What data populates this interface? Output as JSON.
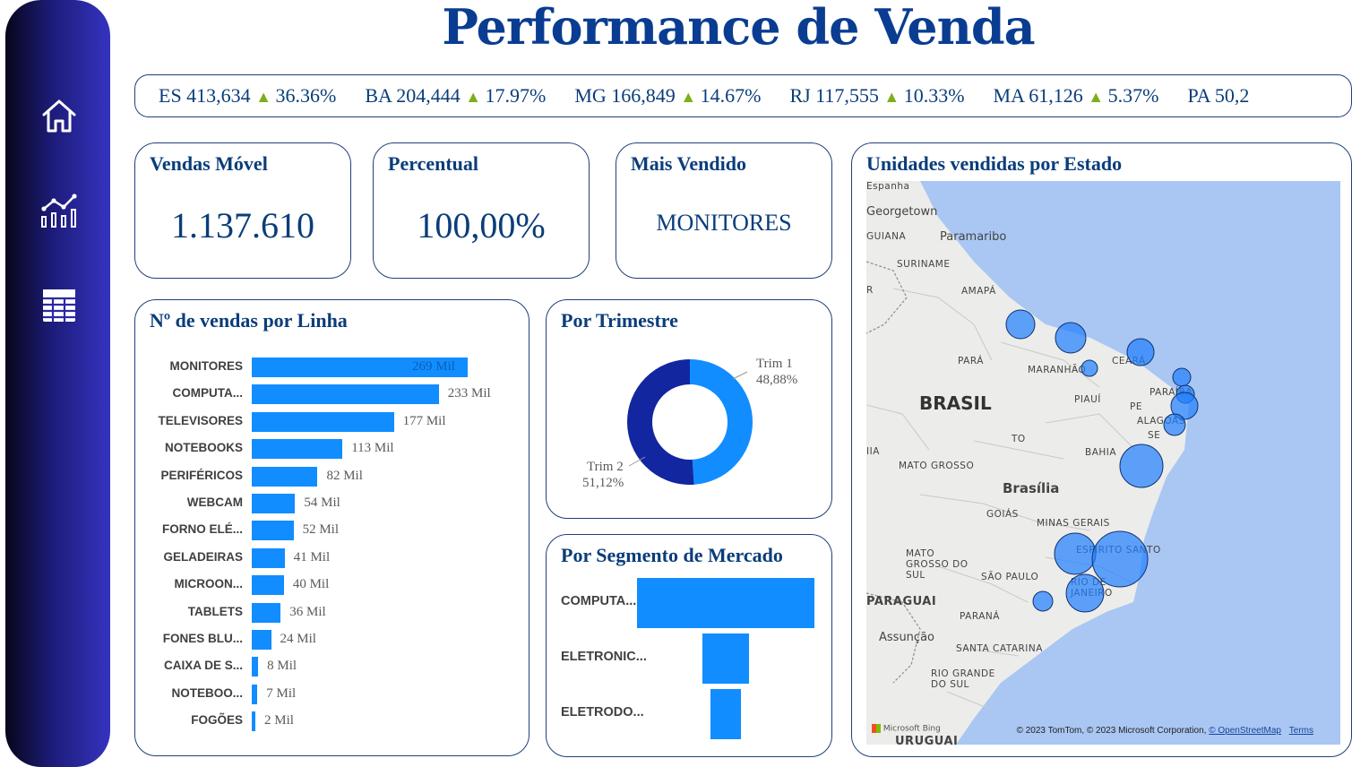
{
  "title": "Performance de Venda",
  "colors": {
    "accent": "#118dff",
    "dark": "#1226a0",
    "title": "#0a3d91",
    "up": "#7fae1c"
  },
  "nav": [
    {
      "icon": "home-icon"
    },
    {
      "icon": "line-chart-icon"
    },
    {
      "icon": "table-icon"
    }
  ],
  "ticker": [
    {
      "state": "ES",
      "value": "413,634",
      "arrow": "▲",
      "pct": "36.36%"
    },
    {
      "state": "BA",
      "value": "204,444",
      "arrow": "▲",
      "pct": "17.97%"
    },
    {
      "state": "MG",
      "value": "166,849",
      "arrow": "▲",
      "pct": "14.67%"
    },
    {
      "state": "RJ",
      "value": "117,555",
      "arrow": "▲",
      "pct": "10.33%"
    },
    {
      "state": "MA",
      "value": "61,126",
      "arrow": "▲",
      "pct": "5.37%"
    },
    {
      "state": "PA",
      "value": "50,2",
      "arrow": "",
      "pct": ""
    }
  ],
  "kpis": {
    "vendas": {
      "title": "Vendas Móvel",
      "value": "1.137.610"
    },
    "percentual": {
      "title": "Percentual",
      "value": "100,00%"
    },
    "mais_vendido": {
      "title": "Mais Vendido",
      "value": "MONITORES"
    }
  },
  "map": {
    "title": "Unidades vendidas por Estado",
    "country": "BRASIL",
    "attribution": "© 2023 TomTom, © 2023 Microsoft Corporation,",
    "osm": "© OpenStreetMap",
    "terms": "Terms",
    "bing": "Microsoft Bing",
    "places": [
      "Espanha",
      "Georgetown",
      "GUIANA",
      "Paramaribo",
      "SURINAME",
      "AMAPÁ",
      "PARÁ",
      "MARANHÃO",
      "CEARÁ",
      "PIAUÍ",
      "PE",
      "PARAÍBA",
      "ALAGOAS",
      "SE",
      "TO",
      "BAHIA",
      "MATO GROSSO",
      "Brasília",
      "GOIÁS",
      "MINAS GERAIS",
      "MATO GROSSO DO SUL",
      "SÃO PAULO",
      "ESPÍRITO SANTO",
      "RIO DE JANEIRO",
      "PARAGUAI",
      "PARANÁ",
      "Assunção",
      "SANTA CATARINA",
      "RIO GRANDE DO SUL",
      "URUGUAI",
      "R",
      "IIA"
    ]
  },
  "chart_data": [
    {
      "type": "bar",
      "title": "Nº de vendas por Linha",
      "orientation": "horizontal",
      "categories": [
        "MONITORES",
        "COMPUTA...",
        "TELEVISORES",
        "NOTEBOOKS",
        "PERIFÉRICOS",
        "WEBCAM",
        "FORNO ELÉ...",
        "GELADEIRAS",
        "MICROON...",
        "TABLETS",
        "FONES BLU...",
        "CAIXA DE S...",
        "NOTEBOO...",
        "FOGÕES"
      ],
      "values": [
        269,
        233,
        177,
        113,
        82,
        54,
        52,
        41,
        40,
        36,
        24,
        8,
        7,
        2
      ],
      "labels": [
        "269 Mil",
        "233 Mil",
        "177 Mil",
        "113 Mil",
        "82 Mil",
        "54 Mil",
        "52 Mil",
        "41 Mil",
        "40 Mil",
        "36 Mil",
        "24 Mil",
        "8 Mil",
        "7 Mil",
        "2 Mil"
      ]
    },
    {
      "type": "pie",
      "title": "Por Trimestre",
      "categories": [
        "Trim 1",
        "Trim 2"
      ],
      "values": [
        48.88,
        51.12
      ],
      "labels": [
        "48,88%",
        "51,12%"
      ]
    },
    {
      "type": "bar",
      "title": "Por Segmento de Mercado",
      "categories": [
        "COMPUTA...",
        "ELETRONIC...",
        "ELETRODO..."
      ],
      "values": [
        100,
        26,
        17
      ]
    }
  ]
}
